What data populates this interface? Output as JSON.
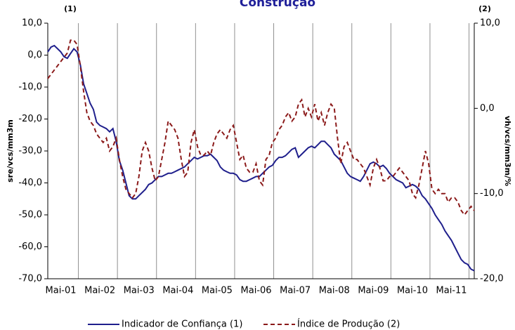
{
  "chart_data": {
    "type": "line",
    "title": "Construção",
    "y_note": "(1)",
    "y2_note": "(2)",
    "ylabel": "sre/vcs/mm3m",
    "y2label": "vh/vcs/mm3m/%",
    "categories": [
      null,
      null,
      null,
      null,
      "Mai-01",
      null,
      null,
      null,
      null,
      null,
      null,
      null,
      null,
      null,
      null,
      null,
      "Mai-02",
      null,
      null,
      null,
      null,
      null,
      null,
      null,
      null,
      null,
      null,
      null,
      "Mai-03",
      null,
      null,
      null,
      null,
      null,
      null,
      null,
      null,
      null,
      null,
      null,
      "Mai-04",
      null,
      null,
      null,
      null,
      null,
      null,
      null,
      null,
      null,
      null,
      null,
      "Mai-05",
      null,
      null,
      null,
      null,
      null,
      null,
      null,
      null,
      null,
      null,
      null,
      "Mai-06",
      null,
      null,
      null,
      null,
      null,
      null,
      null,
      null,
      null,
      null,
      null,
      "Mai-07",
      null,
      null,
      null,
      null,
      null,
      null,
      null,
      null,
      null,
      null,
      null,
      "Mai-08",
      null,
      null,
      null,
      null,
      null,
      null,
      null,
      null,
      null,
      null,
      null,
      "Mai-09",
      null,
      null,
      null,
      null,
      null,
      null,
      null,
      null,
      null,
      null,
      null,
      "Mai-10",
      null,
      null,
      null,
      null,
      null,
      null,
      null,
      null,
      null,
      null,
      null,
      "Mai-11",
      null,
      null,
      null,
      null,
      null,
      null,
      null
    ],
    "series": [
      {
        "name": "Indicador de Confiança (1)",
        "color": "#1f1f8c",
        "dash": false,
        "axis": "y",
        "values": [
          1,
          2.5,
          3,
          2,
          1,
          -0.5,
          -1,
          0.5,
          2,
          1,
          -3,
          -9,
          -12,
          -15,
          -17,
          -21,
          -22,
          -22.5,
          -23,
          -24,
          -23,
          -27,
          -33,
          -36,
          -40,
          -44,
          -45,
          -45,
          -44,
          -43,
          -42,
          -40.5,
          -40,
          -39,
          -38,
          -38,
          -37.5,
          -37,
          -37,
          -36.5,
          -36,
          -35.5,
          -35,
          -34,
          -33,
          -32,
          -32.5,
          -32,
          -31.5,
          -31.5,
          -31,
          -32,
          -33,
          -35,
          -36,
          -36.5,
          -37,
          -37,
          -37.5,
          -39,
          -39.5,
          -39.5,
          -39,
          -38.5,
          -38,
          -38,
          -37,
          -36,
          -35,
          -34.5,
          -33,
          -32,
          -32,
          -31.5,
          -30.5,
          -29.5,
          -29,
          -32,
          -31,
          -30,
          -29,
          -28.5,
          -29,
          -28,
          -27,
          -27,
          -28,
          -29,
          -31,
          -32,
          -33,
          -35,
          -37,
          -38,
          -38.5,
          -39,
          -39.5,
          -38,
          -36,
          -34,
          -33.5,
          -34,
          -35,
          -34.5,
          -35.5,
          -37,
          -38,
          -39,
          -39.5,
          -40,
          -41.5,
          -41,
          -40.5,
          -41,
          -42,
          -44,
          -45,
          -46.5,
          -48,
          -50,
          -51.5,
          -53,
          -55,
          -56.5,
          -58,
          -60,
          -62,
          -64,
          -65,
          -65.5,
          -67,
          -67.5
        ]
      },
      {
        "name": "Índice de Produção (2)",
        "color": "#8b1a1a",
        "dash": true,
        "axis": "y2",
        "values": [
          3.5,
          4,
          4.5,
          5,
          5.5,
          6,
          6.5,
          8,
          8,
          7.5,
          5,
          2,
          -0.5,
          -1.5,
          -2,
          -3,
          -3.5,
          -4,
          -3.5,
          -5,
          -4.5,
          -3.5,
          -6,
          -8,
          -9.5,
          -10,
          -10.5,
          -10,
          -8,
          -5,
          -4,
          -5,
          -7,
          -8.5,
          -8,
          -6,
          -4,
          -1.5,
          -2,
          -2.5,
          -3.5,
          -6,
          -8,
          -7.5,
          -4,
          -2.5,
          -4.5,
          -5.5,
          -5.5,
          -5,
          -5.5,
          -4,
          -3,
          -2.5,
          -3,
          -3.5,
          -2.5,
          -2,
          -4,
          -6,
          -5.5,
          -7,
          -7.5,
          -7.5,
          -6.5,
          -8.5,
          -9,
          -6,
          -5.5,
          -4,
          -3.5,
          -2.5,
          -2,
          -1,
          -0.5,
          -1.5,
          -1,
          0.5,
          1,
          -1,
          0,
          -1,
          0.5,
          -1.5,
          -0.5,
          -2,
          -0.5,
          0.5,
          0,
          -3.5,
          -6.5,
          -4.5,
          -4,
          -5,
          -6,
          -6,
          -6.5,
          -7,
          -8,
          -9,
          -7,
          -6,
          -7,
          -8.5,
          -8.5,
          -8,
          -8,
          -7.5,
          -7,
          -7.5,
          -8,
          -8.5,
          -10,
          -10.5,
          -9,
          -7,
          -5,
          -6.5,
          -9.5,
          -10,
          -9.5,
          -10,
          -10,
          -11,
          -10.5,
          -10.5,
          -11,
          -12,
          -12.5,
          -12,
          -11.5,
          -12
        ]
      }
    ],
    "ylim": [
      -70,
      10
    ],
    "yticks": [
      {
        "value": 10,
        "label": "10,0"
      },
      {
        "value": 0,
        "label": "0,0"
      },
      {
        "value": -10,
        "label": "-10,0"
      },
      {
        "value": -20,
        "label": "-20,0"
      },
      {
        "value": -30,
        "label": "-30,0"
      },
      {
        "value": -40,
        "label": "-40,0"
      },
      {
        "value": -50,
        "label": "-50,0"
      },
      {
        "value": -60,
        "label": "-60,0"
      },
      {
        "value": -70,
        "label": "-70,0"
      }
    ],
    "y2lim": [
      -20,
      10
    ],
    "y2ticks": [
      {
        "value": 10,
        "label": "10,0"
      },
      {
        "value": 0,
        "label": "0,0"
      },
      {
        "value": -10,
        "label": "-10,0"
      },
      {
        "value": -20,
        "label": "-20,0"
      }
    ],
    "grid": true
  }
}
